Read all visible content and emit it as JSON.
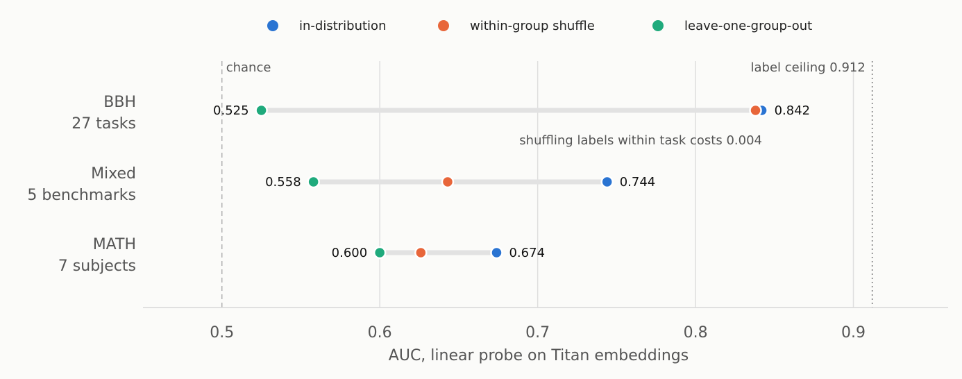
{
  "chart_data": {
    "type": "dumbbell",
    "xlabel": "AUC, linear probe on Titan embeddings",
    "xlim": [
      0.45,
      0.96
    ],
    "xticks": [
      0.5,
      0.6,
      0.7,
      0.8,
      0.9
    ],
    "xtick_labels": [
      "0.5",
      "0.6",
      "0.7",
      "0.8",
      "0.9"
    ],
    "grid": "vertical",
    "legend_position": "top-center",
    "categories": [
      {
        "name": "BBH",
        "sub": "27 tasks"
      },
      {
        "name": "Mixed",
        "sub": "5 benchmarks"
      },
      {
        "name": "MATH",
        "sub": "7 subjects"
      }
    ],
    "series": [
      {
        "name": "in-distribution",
        "color": "#2a74d2",
        "values": [
          0.842,
          0.744,
          0.674
        ]
      },
      {
        "name": "within-group shuffle",
        "color": "#e8663a",
        "values": [
          0.838,
          0.643,
          0.626
        ]
      },
      {
        "name": "leave-one-group-out",
        "color": "#1faa7c",
        "values": [
          0.525,
          0.558,
          0.6
        ]
      }
    ],
    "value_labels": {
      "low": [
        "0.525",
        "0.558",
        "0.600"
      ],
      "high": [
        "0.842",
        "0.744",
        "0.674"
      ]
    },
    "reference_lines": [
      {
        "value": 0.5,
        "label": "chance",
        "style": "dashed"
      },
      {
        "value": 0.912,
        "label": "label ceiling 0.912",
        "style": "dotted"
      }
    ],
    "annotations": [
      {
        "text": "shuffling labels within task costs 0.004"
      }
    ]
  }
}
